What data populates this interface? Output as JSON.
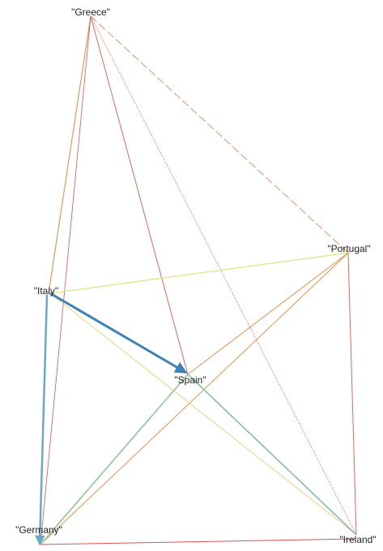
{
  "nodes": [
    {
      "label": "\"Greece\""
    },
    {
      "label": "\"Portugal\""
    },
    {
      "label": "\"Italy\""
    },
    {
      "label": "\"Spain\""
    },
    {
      "label": "\"Germany\""
    },
    {
      "label": "\"Ireland\""
    }
  ]
}
